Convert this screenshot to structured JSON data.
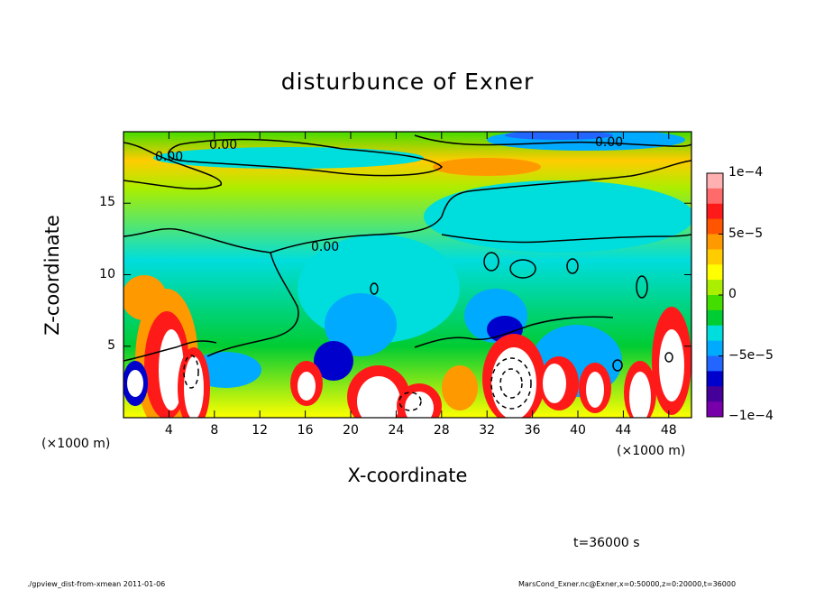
{
  "chart_data": {
    "type": "heatmap",
    "title": "disturbunce of Exner",
    "xlabel": "X-coordinate",
    "ylabel": "Z-coordinate",
    "x_unit": "(×1000 m)",
    "x_unit_right": "(×1000 m)",
    "xlim": [
      0,
      50
    ],
    "ylim": [
      0,
      20
    ],
    "x_ticks": [
      4,
      8,
      12,
      16,
      20,
      24,
      28,
      32,
      36,
      40,
      44,
      48
    ],
    "y_ticks": [
      5,
      10,
      15
    ],
    "colorbar": {
      "min": -0.0001,
      "max": 0.0001,
      "tick_labels": [
        "1e−4",
        "5e−5",
        "0",
        "−5e−5",
        "−1e−4"
      ],
      "tick_values": [
        0.0001,
        5e-05,
        0,
        -5e-05,
        -0.0001
      ],
      "colors": [
        "#ffb0b0",
        "#ff6a6a",
        "#ff1a1a",
        "#ff5500",
        "#ff9900",
        "#ffcc00",
        "#ffff00",
        "#aaee00",
        "#44dd00",
        "#00cc33",
        "#00dddd",
        "#00aaff",
        "#2266ff",
        "#0000cc",
        "#440099",
        "#7700aa"
      ]
    },
    "contour_labels": [
      "0.00",
      "0.00",
      "0.00",
      "0.00"
    ],
    "grid": false
  },
  "annotations": {
    "time": "t=36000 s",
    "footer_left": "./gpview_dist-from-xmean  2011-01-06",
    "footer_right": "MarsCond_Exner.nc@Exner,x=0:50000,z=0:20000,t=36000"
  }
}
